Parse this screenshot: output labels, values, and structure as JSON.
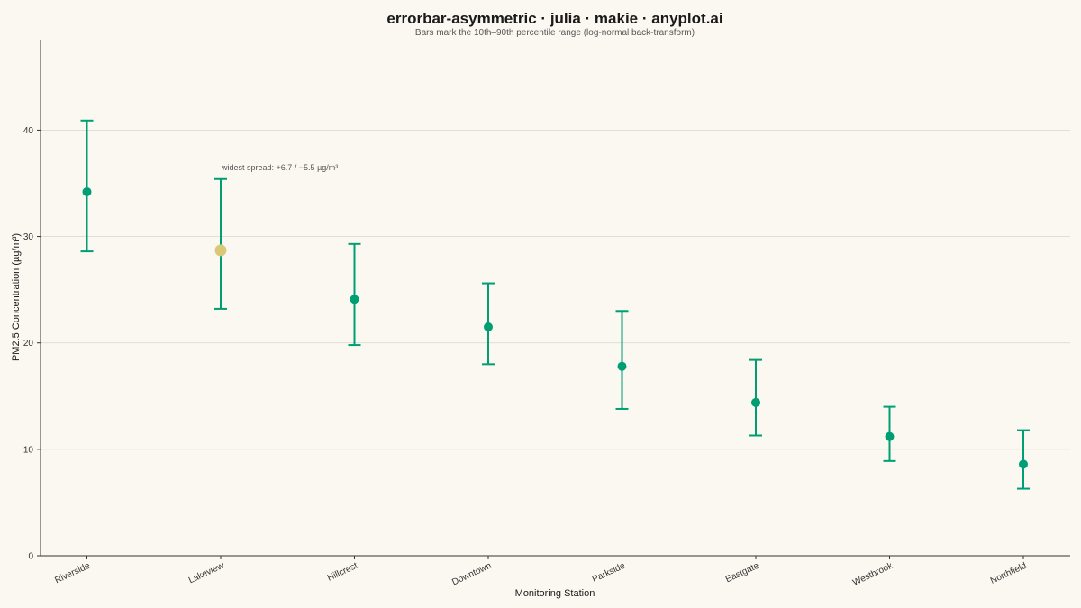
{
  "chart_data": {
    "type": "scatter",
    "variant": "asymmetric-errorbar",
    "title": "errorbar-asymmetric · julia · makie · anyplot.ai",
    "subtitle": "Bars mark the 10th–90th percentile range (log-normal back-transform)",
    "xlabel": "Monitoring Station",
    "ylabel": "PM2.5 Concentration (µg/m³)",
    "ylim": [
      0,
      48.5
    ],
    "yticks": [
      "0",
      "10",
      "20",
      "30",
      "40"
    ],
    "categories": [
      "Riverside",
      "Lakeview",
      "Hillcrest",
      "Downtown",
      "Parkside",
      "Eastgate",
      "Westbrook",
      "Northfield"
    ],
    "series": [
      {
        "values": [
          34.2,
          28.7,
          24.1,
          21.5,
          17.8,
          14.4,
          11.2,
          8.6
        ],
        "lower": [
          28.6,
          23.2,
          19.8,
          18.0,
          13.8,
          11.3,
          8.9,
          6.3
        ],
        "upper": [
          40.9,
          35.4,
          29.3,
          25.6,
          23.0,
          18.4,
          14.0,
          11.8
        ]
      }
    ],
    "highlight_index": 1,
    "annotation": "widest spread: +6.7 / −5.5 µg/m³",
    "grid": "horizontal",
    "colors": {
      "main": "#009E73",
      "highlight": "#D9C878",
      "background": "#FAF8F1",
      "grid": "#DEDBD2",
      "axis": "#333333"
    }
  }
}
